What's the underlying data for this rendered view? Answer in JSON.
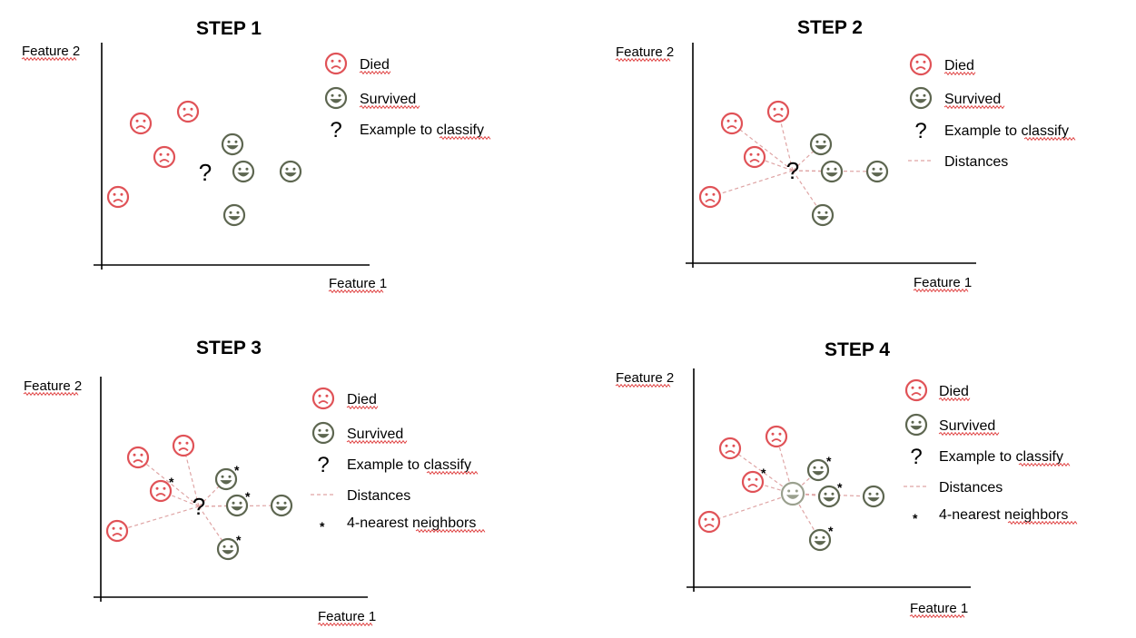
{
  "colors": {
    "died": "#e05257",
    "survived": "#5d6650",
    "distance_line": "#dfa5a5",
    "neutral_face": "#9aa08e",
    "axis": "#000000",
    "squiggle": "#dd3333"
  },
  "panels": [
    {
      "title": "STEP 1",
      "y_axis_label": "Feature 2",
      "x_axis_label": "Feature 1",
      "legend": {
        "died": "Died",
        "survived": "Survived",
        "query": "Example to classify",
        "distances": "",
        "neighbors": ""
      },
      "points": [
        {
          "class": "died",
          "neighbor": false
        },
        {
          "class": "died",
          "neighbor": false
        },
        {
          "class": "died",
          "neighbor": false
        },
        {
          "class": "died",
          "neighbor": false
        },
        {
          "class": "survived",
          "neighbor": false
        },
        {
          "class": "survived",
          "neighbor": false
        },
        {
          "class": "survived",
          "neighbor": false
        },
        {
          "class": "survived",
          "neighbor": false
        }
      ],
      "show_distances": false,
      "query_classified": false
    },
    {
      "title": "STEP 2",
      "y_axis_label": "Feature 2",
      "x_axis_label": "Feature 1",
      "legend": {
        "died": "Died",
        "survived": "Survived",
        "query": "Example to classify",
        "distances": "Distances",
        "neighbors": ""
      },
      "points": [
        {
          "class": "died",
          "neighbor": false
        },
        {
          "class": "died",
          "neighbor": false
        },
        {
          "class": "died",
          "neighbor": false
        },
        {
          "class": "died",
          "neighbor": false
        },
        {
          "class": "survived",
          "neighbor": false
        },
        {
          "class": "survived",
          "neighbor": false
        },
        {
          "class": "survived",
          "neighbor": false
        },
        {
          "class": "survived",
          "neighbor": false
        }
      ],
      "show_distances": true,
      "query_classified": false
    },
    {
      "title": "STEP 3",
      "y_axis_label": "Feature 2",
      "x_axis_label": "Feature 1",
      "legend": {
        "died": "Died",
        "survived": "Survived",
        "query": "Example to classify",
        "distances": "Distances",
        "neighbors": "4-nearest neighbors"
      },
      "points": [
        {
          "class": "died",
          "neighbor": false
        },
        {
          "class": "died",
          "neighbor": false
        },
        {
          "class": "died",
          "neighbor": true
        },
        {
          "class": "died",
          "neighbor": false
        },
        {
          "class": "survived",
          "neighbor": true
        },
        {
          "class": "survived",
          "neighbor": true
        },
        {
          "class": "survived",
          "neighbor": false
        },
        {
          "class": "survived",
          "neighbor": true
        }
      ],
      "show_distances": true,
      "query_classified": false
    },
    {
      "title": "STEP 4",
      "y_axis_label": "Feature 2",
      "x_axis_label": "Feature 1",
      "legend": {
        "died": "Died",
        "survived": "Survived",
        "query": "Example to classify",
        "distances": "Distances",
        "neighbors": "4-nearest neighbors"
      },
      "points": [
        {
          "class": "died",
          "neighbor": false
        },
        {
          "class": "died",
          "neighbor": false
        },
        {
          "class": "died",
          "neighbor": true
        },
        {
          "class": "died",
          "neighbor": false
        },
        {
          "class": "survived",
          "neighbor": true
        },
        {
          "class": "survived",
          "neighbor": true
        },
        {
          "class": "survived",
          "neighbor": false
        },
        {
          "class": "survived",
          "neighbor": true
        }
      ],
      "show_distances": true,
      "query_classified": true
    }
  ]
}
